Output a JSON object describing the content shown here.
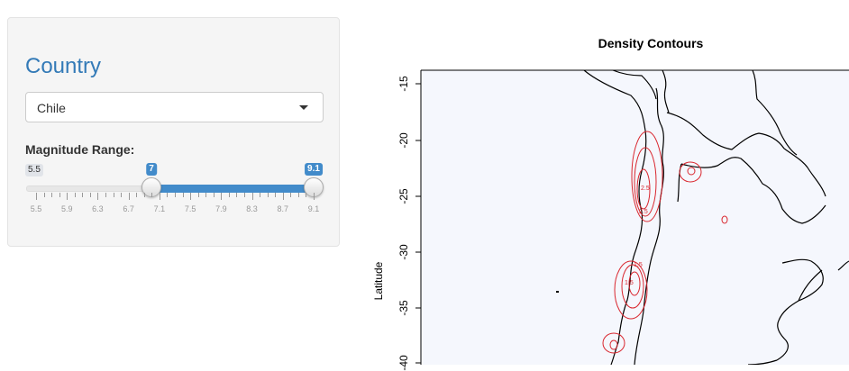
{
  "panel": {
    "title": "Country",
    "select_value": "Chile",
    "slider_label": "Magnitude Range:",
    "slider_min": "5.5",
    "slider_from": "7",
    "slider_to": "9.1",
    "ticks": [
      "5.5",
      "5.9",
      "6.3",
      "6.7",
      "7.1",
      "7.5",
      "7.9",
      "8.3",
      "8.7",
      "9.1"
    ]
  },
  "plot": {
    "title": "Density Contours",
    "ylabel": "Latitude",
    "yticks": [
      "-15",
      "-20",
      "-25",
      "-30",
      "-35",
      "-40"
    ],
    "contour_labels": [
      "2.5",
      "2.5",
      "1.5",
      "1.5"
    ]
  },
  "colors": {
    "accent": "#337ab7",
    "slider_fill": "#428bca",
    "map_bg": "#f5f7fd",
    "contour": "#d9262e"
  }
}
